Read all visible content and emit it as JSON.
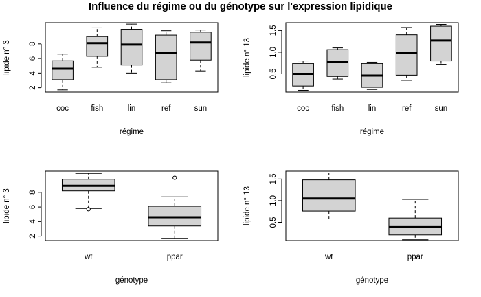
{
  "title": "Influence du régime ou du génotype sur l'expression lipidique",
  "chart_data": [
    {
      "type": "boxplot",
      "xlabel": "régime",
      "ylabel": "lipide n° 3",
      "categories": [
        "coc",
        "fish",
        "lin",
        "ref",
        "sun"
      ],
      "ylim": [
        1.4,
        10.9
      ],
      "yticks": [
        2,
        4,
        6,
        8
      ],
      "boxes": [
        {
          "whisker_low": 1.7,
          "q1": 3.1,
          "median": 4.6,
          "q3": 5.7,
          "whisker_high": 6.6,
          "outliers": []
        },
        {
          "whisker_low": 4.8,
          "q1": 6.3,
          "median": 8.1,
          "q3": 9.0,
          "whisker_high": 10.2,
          "outliers": []
        },
        {
          "whisker_low": 4.0,
          "q1": 5.1,
          "median": 7.9,
          "q3": 10.0,
          "whisker_high": 10.7,
          "outliers": []
        },
        {
          "whisker_low": 2.7,
          "q1": 3.1,
          "median": 6.8,
          "q3": 9.2,
          "whisker_high": 9.8,
          "outliers": []
        },
        {
          "whisker_low": 4.3,
          "q1": 5.8,
          "median": 8.2,
          "q3": 9.6,
          "whisker_high": 9.9,
          "outliers": []
        }
      ]
    },
    {
      "type": "boxplot",
      "xlabel": "régime",
      "ylabel": "lipide n° 13",
      "categories": [
        "coc",
        "fish",
        "lin",
        "ref",
        "sun"
      ],
      "ylim": [
        0.08,
        1.68
      ],
      "yticks": [
        0.5,
        1.0,
        1.5
      ],
      "boxes": [
        {
          "whisker_low": 0.12,
          "q1": 0.22,
          "median": 0.5,
          "q3": 0.74,
          "whisker_high": 0.8,
          "outliers": []
        },
        {
          "whisker_low": 0.38,
          "q1": 0.44,
          "median": 0.77,
          "q3": 1.06,
          "whisker_high": 1.1,
          "outliers": []
        },
        {
          "whisker_low": 0.14,
          "q1": 0.19,
          "median": 0.46,
          "q3": 0.74,
          "whisker_high": 0.77,
          "outliers": []
        },
        {
          "whisker_low": 0.35,
          "q1": 0.47,
          "median": 0.98,
          "q3": 1.4,
          "whisker_high": 1.57,
          "outliers": []
        },
        {
          "whisker_low": 0.72,
          "q1": 0.8,
          "median": 1.27,
          "q3": 1.6,
          "whisker_high": 1.64,
          "outliers": []
        }
      ]
    },
    {
      "type": "boxplot",
      "xlabel": "génotype",
      "ylabel": "lipide n° 3",
      "categories": [
        "wt",
        "ppar"
      ],
      "ylim": [
        1.4,
        10.9
      ],
      "yticks": [
        2,
        4,
        6,
        8
      ],
      "boxes": [
        {
          "whisker_low": 5.8,
          "q1": 8.2,
          "median": 8.9,
          "q3": 9.8,
          "whisker_high": 10.6,
          "outliers": [
            5.7
          ]
        },
        {
          "whisker_low": 1.7,
          "q1": 3.4,
          "median": 4.6,
          "q3": 6.1,
          "whisker_high": 7.4,
          "outliers": [
            10.0
          ]
        }
      ]
    },
    {
      "type": "boxplot",
      "xlabel": "génotype",
      "ylabel": "lipide n° 13",
      "categories": [
        "wt",
        "ppar"
      ],
      "ylim": [
        0.08,
        1.68
      ],
      "yticks": [
        0.5,
        1.0,
        1.5
      ],
      "boxes": [
        {
          "whisker_low": 0.58,
          "q1": 0.76,
          "median": 1.05,
          "q3": 1.48,
          "whisker_high": 1.64,
          "outliers": []
        },
        {
          "whisker_low": 0.1,
          "q1": 0.21,
          "median": 0.39,
          "q3": 0.6,
          "whisker_high": 1.03,
          "outliers": []
        }
      ]
    }
  ]
}
